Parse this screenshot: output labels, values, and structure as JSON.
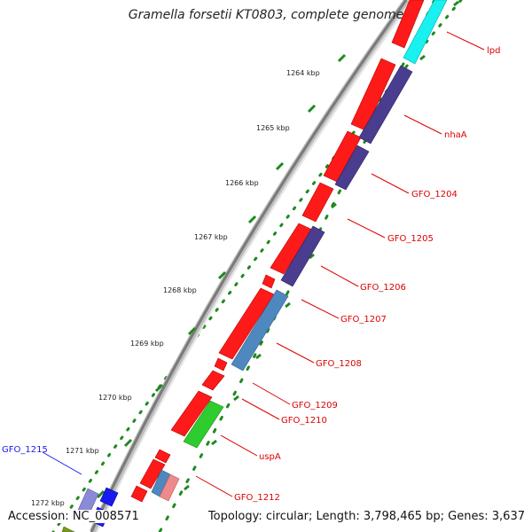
{
  "title": "Gramella forsetii KT0803, complete genome",
  "footer": {
    "accession": "Accession: NC_008571",
    "summary": "Topology: circular; Length: 3,798,465 bp; Genes: 3,637"
  },
  "ticks": [
    "1264 kbp",
    "1265 kbp",
    "1266 kbp",
    "1267 kbp",
    "1268 kbp",
    "1269 kbp",
    "1270 kbp",
    "1271 kbp",
    "1272 kbp"
  ],
  "colors": {
    "forward_cds": "#ff1a1a",
    "reverse_cds_purple": "#4a3d8f",
    "reverse_cds_steelblue": "#4f88be",
    "reverse_cds_cyan": "#19f0f0",
    "reverse_cds_green": "#2ecc2e",
    "reverse_cds_pink": "#f08a8a",
    "label_red": "#dd0000",
    "label_blue": "#1a1aee",
    "backbone": "#8a8a8a",
    "tick_green": "#1e8a1e"
  },
  "genes": [
    {
      "name": "lpd",
      "strand": "reverse",
      "color": "#19f0f0",
      "start_kbp": 1262.9,
      "end_kbp": 1263.6,
      "label_color": "#dd0000"
    },
    {
      "name": "nhaA",
      "strand": "reverse",
      "color": "#4a3d8f",
      "start_kbp": 1263.8,
      "end_kbp": 1265.6,
      "label_color": "#dd0000"
    },
    {
      "name": "GFO_1204",
      "strand": "reverse",
      "color": "#4a3d8f",
      "start_kbp": 1265.3,
      "end_kbp": 1265.7,
      "label_color": "#dd0000"
    },
    {
      "name": "GFO_1205",
      "strand": "forward",
      "color": "#ff1a1a",
      "start_kbp": 1265.8,
      "end_kbp": 1266.7,
      "label_color": "#dd0000"
    },
    {
      "name": "GFO_1206",
      "strand": "reverse",
      "color": "#4a3d8f",
      "start_kbp": 1267.0,
      "end_kbp": 1268.0,
      "label_color": "#dd0000"
    },
    {
      "name": "GFO_1207",
      "strand": "reverse",
      "color": "#4f88be",
      "start_kbp": 1268.2,
      "end_kbp": 1268.6,
      "label_color": "#dd0000"
    },
    {
      "name": "GFO_1208",
      "strand": "reverse",
      "color": "#4f88be",
      "start_kbp": 1268.6,
      "end_kbp": 1269.5,
      "label_color": "#dd0000"
    },
    {
      "name": "GFO_1209",
      "strand": "forward",
      "color": "#ff1a1a",
      "start_kbp": 1269.7,
      "end_kbp": 1270.0,
      "label_color": "#dd0000"
    },
    {
      "name": "GFO_1210",
      "strand": "forward",
      "color": "#ff1a1a",
      "start_kbp": 1270.0,
      "end_kbp": 1270.2,
      "label_color": "#dd0000"
    },
    {
      "name": "uspA",
      "strand": "reverse",
      "color": "#2ecc2e",
      "start_kbp": 1270.3,
      "end_kbp": 1271.0,
      "label_color": "#dd0000"
    },
    {
      "name": "GFO_1212",
      "strand": "reverse",
      "color": "#f08a8a",
      "start_kbp": 1271.6,
      "end_kbp": 1271.9,
      "label_color": "#dd0000"
    },
    {
      "name": "GFO_1215",
      "strand": "reverse",
      "color": "#8a8ad8",
      "start_kbp": 1272.3,
      "end_kbp": 1272.9,
      "label_color": "#1a1aee"
    }
  ]
}
